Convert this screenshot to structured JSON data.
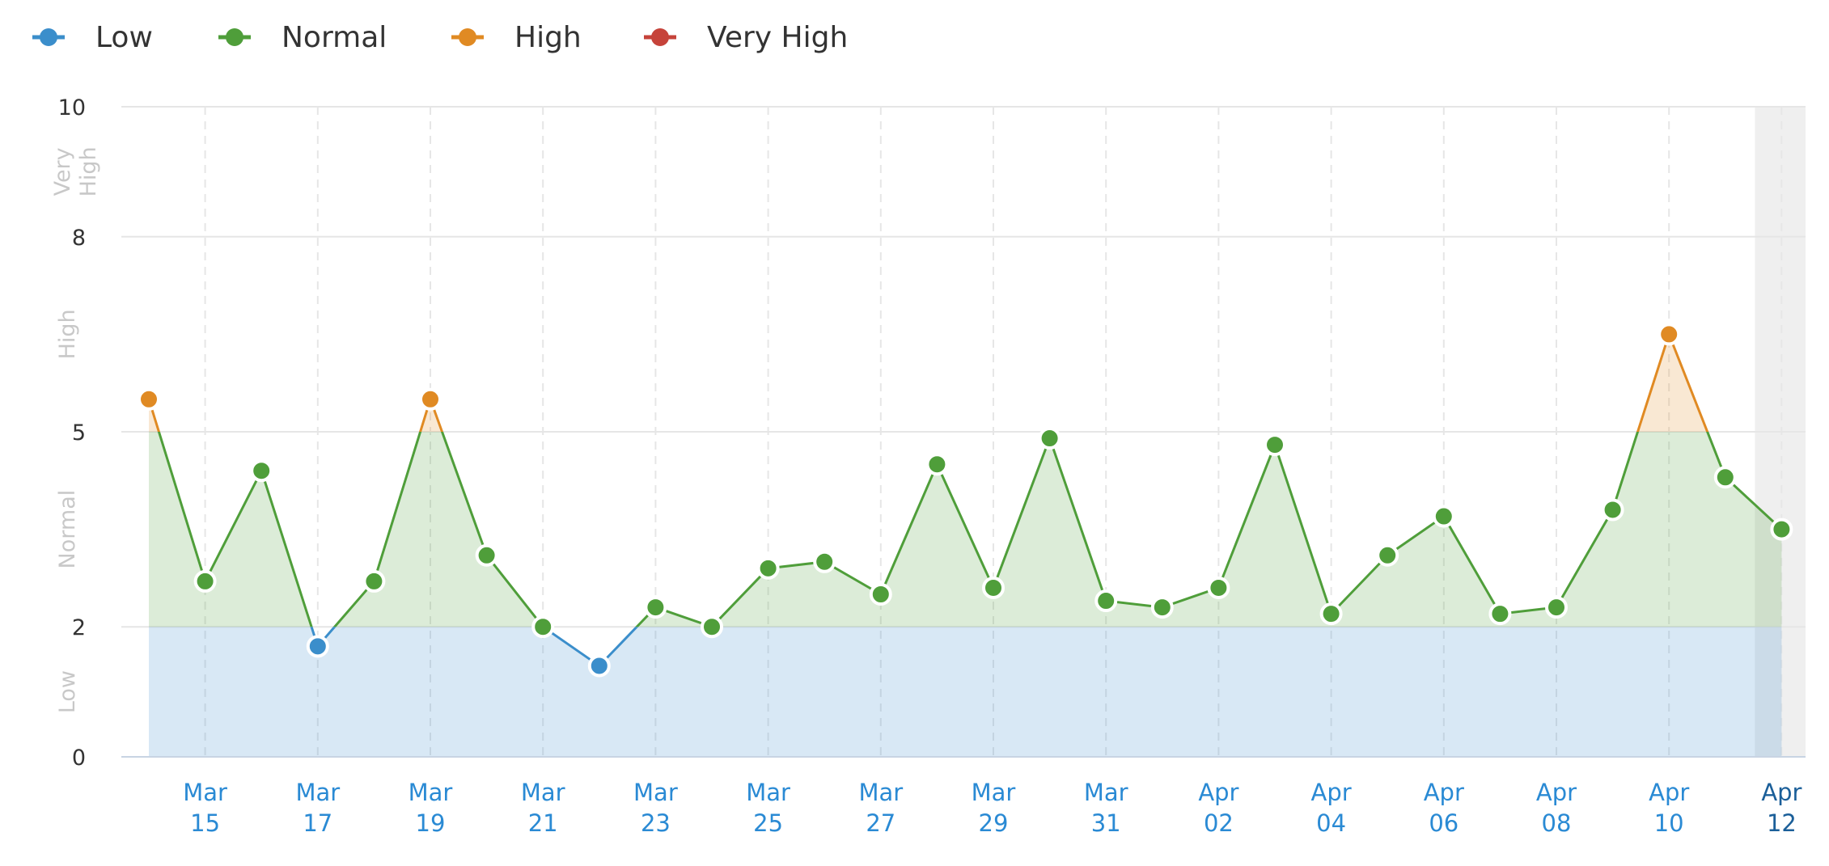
{
  "chart_data": {
    "type": "line",
    "legend_position": "top-left",
    "legend": [
      {
        "label": "Low",
        "color": "#3b8ecb"
      },
      {
        "label": "Normal",
        "color": "#4f9e3a"
      },
      {
        "label": "High",
        "color": "#e08a23"
      },
      {
        "label": "Very High",
        "color": "#c6433a"
      }
    ],
    "bands": [
      {
        "label": "Low",
        "from": 0,
        "to": 2,
        "color": "#3b8ecb"
      },
      {
        "label": "Normal",
        "from": 2,
        "to": 5,
        "color": "#4f9e3a"
      },
      {
        "label": "High",
        "from": 5,
        "to": 8,
        "color": "#e08a23"
      },
      {
        "label": "Very High",
        "from": 8,
        "to": 10,
        "color": "#c6433a"
      }
    ],
    "y_ticks": [
      "10",
      "8",
      "5",
      "2",
      "0"
    ],
    "ylim": [
      0,
      10
    ],
    "grid": true,
    "x_tick_labels": [
      {
        "month": "Mar",
        "day": "15"
      },
      {
        "month": "Mar",
        "day": "17"
      },
      {
        "month": "Mar",
        "day": "19"
      },
      {
        "month": "Mar",
        "day": "21"
      },
      {
        "month": "Mar",
        "day": "23"
      },
      {
        "month": "Mar",
        "day": "25"
      },
      {
        "month": "Mar",
        "day": "27"
      },
      {
        "month": "Mar",
        "day": "29"
      },
      {
        "month": "Mar",
        "day": "31"
      },
      {
        "month": "Apr",
        "day": "02"
      },
      {
        "month": "Apr",
        "day": "04"
      },
      {
        "month": "Apr",
        "day": "06"
      },
      {
        "month": "Apr",
        "day": "08"
      },
      {
        "month": "Apr",
        "day": "10"
      },
      {
        "month": "Apr",
        "day": "12"
      }
    ],
    "x": [
      "Mar 14",
      "Mar 15",
      "Mar 16",
      "Mar 17",
      "Mar 18",
      "Mar 19",
      "Mar 20",
      "Mar 21",
      "Mar 22",
      "Mar 23",
      "Mar 24",
      "Mar 25",
      "Mar 26",
      "Mar 27",
      "Mar 28",
      "Mar 29",
      "Mar 30",
      "Mar 31",
      "Apr 01",
      "Apr 02",
      "Apr 03",
      "Apr 04",
      "Apr 05",
      "Apr 06",
      "Apr 07",
      "Apr 08",
      "Apr 09",
      "Apr 10",
      "Apr 11",
      "Apr 12"
    ],
    "values": [
      5.5,
      2.7,
      4.4,
      1.7,
      2.7,
      5.5,
      3.1,
      2.0,
      1.4,
      2.3,
      2.0,
      2.9,
      3.0,
      2.5,
      4.5,
      2.6,
      4.9,
      2.4,
      2.3,
      2.6,
      4.8,
      2.2,
      3.1,
      3.7,
      2.2,
      2.3,
      3.8,
      6.5,
      4.3,
      3.5
    ],
    "highlighted_last_point": "Apr 12"
  }
}
